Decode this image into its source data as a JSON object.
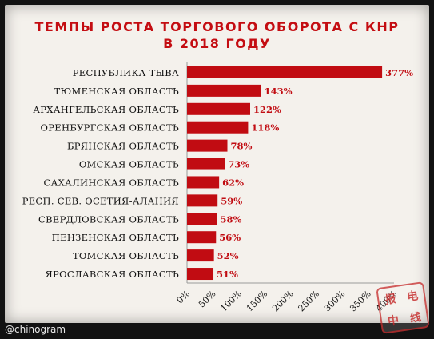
{
  "chart_data": {
    "type": "bar",
    "orientation": "horizontal",
    "title": "ТЕМПЫ РОСТА ТОРГОВОГО ОБОРОТА С КНР",
    "subtitle": "В 2018 ГОДУ",
    "categories": [
      "РЕСПУБЛИКА ТЫВА",
      "ТЮМЕНСКАЯ ОБЛАСТЬ",
      "АРХАНГЕЛЬСКАЯ ОБЛАСТЬ",
      "ОРЕНБУРГСКАЯ ОБЛАСТЬ",
      "БРЯНСКАЯ ОБЛАСТЬ",
      "ОМСКАЯ ОБЛАСТЬ",
      "САХАЛИНСКАЯ ОБЛАСТЬ",
      "РЕСП. СЕВ. ОСЕТИЯ-АЛАНИЯ",
      "СВЕРДЛОВСКАЯ ОБЛАСТЬ",
      "ПЕНЗЕНСКАЯ ОБЛАСТЬ",
      "ТОМСКАЯ ОБЛАСТЬ",
      "ЯРОСЛАВСКАЯ ОБЛАСТЬ"
    ],
    "values": [
      377,
      143,
      122,
      118,
      78,
      73,
      62,
      59,
      58,
      56,
      52,
      51
    ],
    "value_labels": [
      "377%",
      "143%",
      "122%",
      "118%",
      "78%",
      "73%",
      "62%",
      "59%",
      "58%",
      "56%",
      "52%",
      "51%"
    ],
    "xlim": [
      0,
      400
    ],
    "xticks": [
      0,
      50,
      100,
      150,
      200,
      250,
      300,
      350,
      400
    ],
    "xtick_labels": [
      "0%",
      "50%",
      "100%",
      "150%",
      "200%",
      "250%",
      "300%",
      "350%",
      "400%"
    ],
    "grid": false,
    "legend": "none",
    "bar_color": "#c10c12",
    "label_color": "#c10c12"
  },
  "watermark": {
    "handle": "@chinogram",
    "stamp_chars": [
      "电",
      "线",
      "报",
      "中"
    ]
  }
}
